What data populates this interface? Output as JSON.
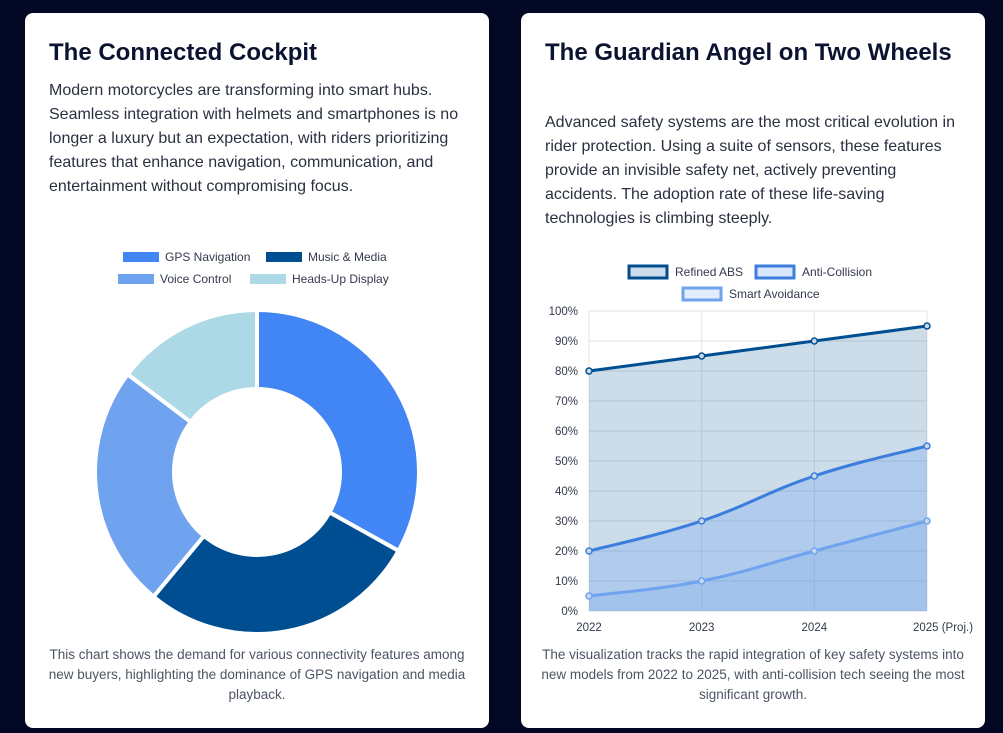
{
  "cards": [
    {
      "title": "The Connected Cockpit",
      "description": "Modern motorcycles are transforming into smart hubs. Seamless integration with helmets and smartphones is no longer a luxury but an expectation, with riders prioritizing features that enhance navigation, communication, and entertainment without compromising focus.",
      "caption": "This chart shows the demand for various connectivity features among new buyers, highlighting the dominance of GPS navigation and media playback."
    },
    {
      "title": "The Guardian Angel on Two Wheels",
      "description": "Advanced safety systems are the most critical evolution in rider protection. Using a suite of sensors, these features provide an invisible safety net, actively preventing accidents. The adoption rate of these life-saving technologies is climbing steeply.",
      "caption": "The visualization tracks the rapid integration of key safety systems into new models from 2022 to 2025, with anti-collision tech seeing the most significant growth."
    }
  ],
  "chart_data": [
    {
      "type": "pie",
      "variant": "doughnut",
      "legend_position": "top",
      "categories": [
        "GPS Navigation",
        "Music & Media",
        "Voice Control",
        "Heads-Up Display"
      ],
      "values": [
        45,
        38,
        33,
        20
      ],
      "colors": [
        "#4285f4",
        "#004e92",
        "#6fa3ef",
        "#add8e6"
      ]
    },
    {
      "type": "area",
      "legend_position": "top",
      "grid": true,
      "categories": [
        "2022",
        "2023",
        "2024",
        "2025 (Proj.)"
      ],
      "ylim": [
        0,
        100
      ],
      "yticks": [
        "0%",
        "10%",
        "20%",
        "30%",
        "40%",
        "50%",
        "60%",
        "70%",
        "80%",
        "90%",
        "100%"
      ],
      "series": [
        {
          "name": "Refined ABS",
          "values": [
            80,
            85,
            90,
            95
          ],
          "color": "#004e92",
          "fill": "#004e92"
        },
        {
          "name": "Anti-Collision",
          "values": [
            20,
            30,
            45,
            55
          ],
          "color": "#3b7ddd",
          "fill": "#4285f4"
        },
        {
          "name": "Smart Avoidance",
          "values": [
            5,
            10,
            20,
            30
          ],
          "color": "#6fa3ef",
          "fill": "#6fa3ef"
        }
      ]
    }
  ]
}
